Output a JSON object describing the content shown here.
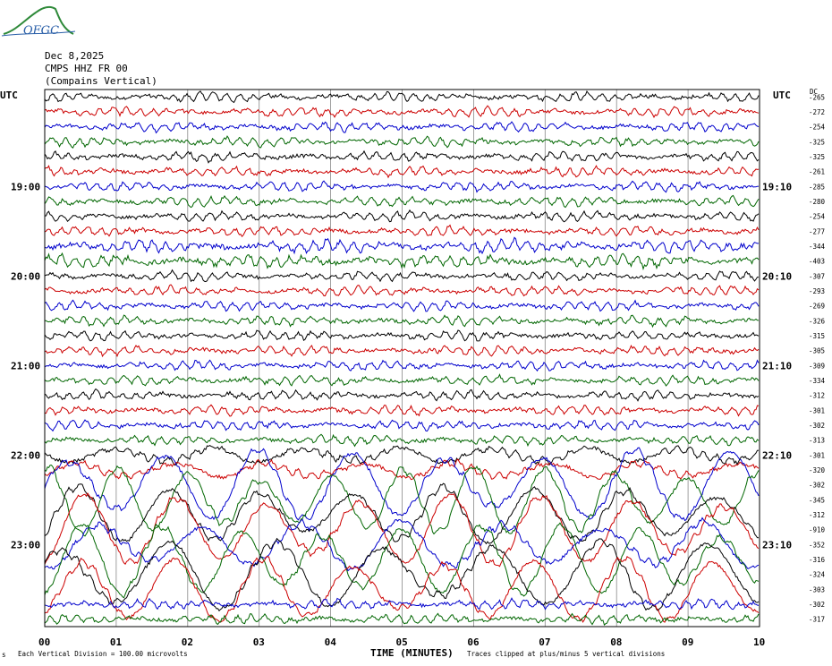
{
  "logo": {
    "text": "OFGC",
    "color": "#2f8a3a",
    "text_color": "#2a5fa8"
  },
  "header": {
    "date": "Dec 8,2025",
    "station": "CMPS HHZ FR 00",
    "location": "(Compains Vertical)"
  },
  "left_axis": {
    "label": "UTC",
    "hour_labels": [
      "19:00",
      "20:00",
      "21:00",
      "22:00",
      "23:00"
    ]
  },
  "right_axis": {
    "label": "UTC",
    "hour_labels": [
      "19:10",
      "20:10",
      "21:10",
      "22:10",
      "23:10"
    ],
    "dc_label": "DC",
    "dc_values": [
      "-265",
      "-272",
      "-254",
      "-325",
      "-325",
      "-261",
      "-285",
      "-280",
      "-254",
      "-277",
      "-344",
      "-403",
      "-307",
      "-293",
      "-269",
      "-326",
      "-315",
      "-305",
      "-309",
      "-334",
      "-312",
      "-301",
      "-302",
      "-313",
      "-301",
      "-320",
      "-302",
      "-345",
      "-312",
      "-910",
      "-352",
      "-316",
      "-324",
      "-303",
      "-302",
      "-317"
    ]
  },
  "footer": {
    "left_mark": "s",
    "scale_note": "Each Vertical Division =  100.00 microvolts",
    "xlabel": "TIME (MINUTES)",
    "clip_note": "Traces clipped at plus/minus 5 vertical divisions"
  },
  "chart_data": {
    "type": "line",
    "x_tick_labels": [
      "00",
      "01",
      "02",
      "03",
      "04",
      "05",
      "06",
      "07",
      "08",
      "09",
      "10"
    ],
    "xlim": [
      0,
      10
    ],
    "trace_count": 36,
    "trace_colors": [
      "#000000",
      "#cc0000",
      "#0000cc",
      "#006600"
    ],
    "grid": true,
    "hour_rows": [
      6,
      12,
      18,
      24,
      30
    ],
    "event": {
      "description": "large-amplitude oscillations (clipped) during 22:00-23:30",
      "start_trace": 24,
      "strong_start_trace": 26,
      "end_trace": 33
    }
  }
}
